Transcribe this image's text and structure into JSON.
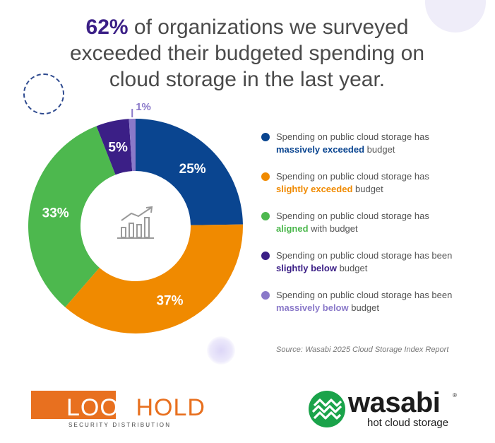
{
  "headline": {
    "highlight": "62%",
    "line1_rest": " of organizations we surveyed",
    "line2": "exceeded their budgeted spending on",
    "line3": "cloud storage in the last year."
  },
  "chart_data": {
    "type": "pie",
    "donut": true,
    "title": "",
    "categories": [
      "Spending on public cloud storage has massively exceeded budget",
      "Spending on public cloud storage has slightly exceeded budget",
      "Spending on public cloud storage has aligned with budget",
      "Spending on public cloud storage has been slightly below budget",
      "Spending on public cloud storage has been massively below budget"
    ],
    "values": [
      25,
      37,
      33,
      5,
      1
    ],
    "labels": [
      "25%",
      "37%",
      "33%",
      "5%",
      "1%"
    ],
    "colors": [
      "#0a4590",
      "#f08a00",
      "#4db84e",
      "#3b1f86",
      "#8a79c9"
    ],
    "center_icon": "bar-chart-trend-icon",
    "legend_position": "right"
  },
  "legend": [
    {
      "pre": "Spending on public cloud storage has",
      "bold": "massively exceeded",
      "post": " budget",
      "color": "#0a4590"
    },
    {
      "pre": "Spending on public cloud storage has",
      "bold": "slightly exceeded",
      "post": " budget",
      "color": "#f08a00"
    },
    {
      "pre": "Spending on public cloud storage has",
      "bold": "aligned",
      "post": " with budget",
      "color": "#4db84e"
    },
    {
      "pre": "Spending on public cloud storage has been",
      "bold": "slightly below",
      "post": " budget",
      "color": "#3b1f86"
    },
    {
      "pre": "Spending on public cloud storage has been",
      "bold": "massively below",
      "post": " budget",
      "color": "#8a79c9"
    }
  ],
  "source": "Source: Wasabi 2025 Cloud Storage Index Report",
  "logos": {
    "loophold": {
      "name": "LOOPHOLD",
      "tagline": "SECURITY DISTRIBUTION",
      "color": "#e8701f"
    },
    "wasabi": {
      "name": "wasabi",
      "reg": "®",
      "tagline": "hot cloud storage",
      "color": "#1aa34a"
    }
  }
}
